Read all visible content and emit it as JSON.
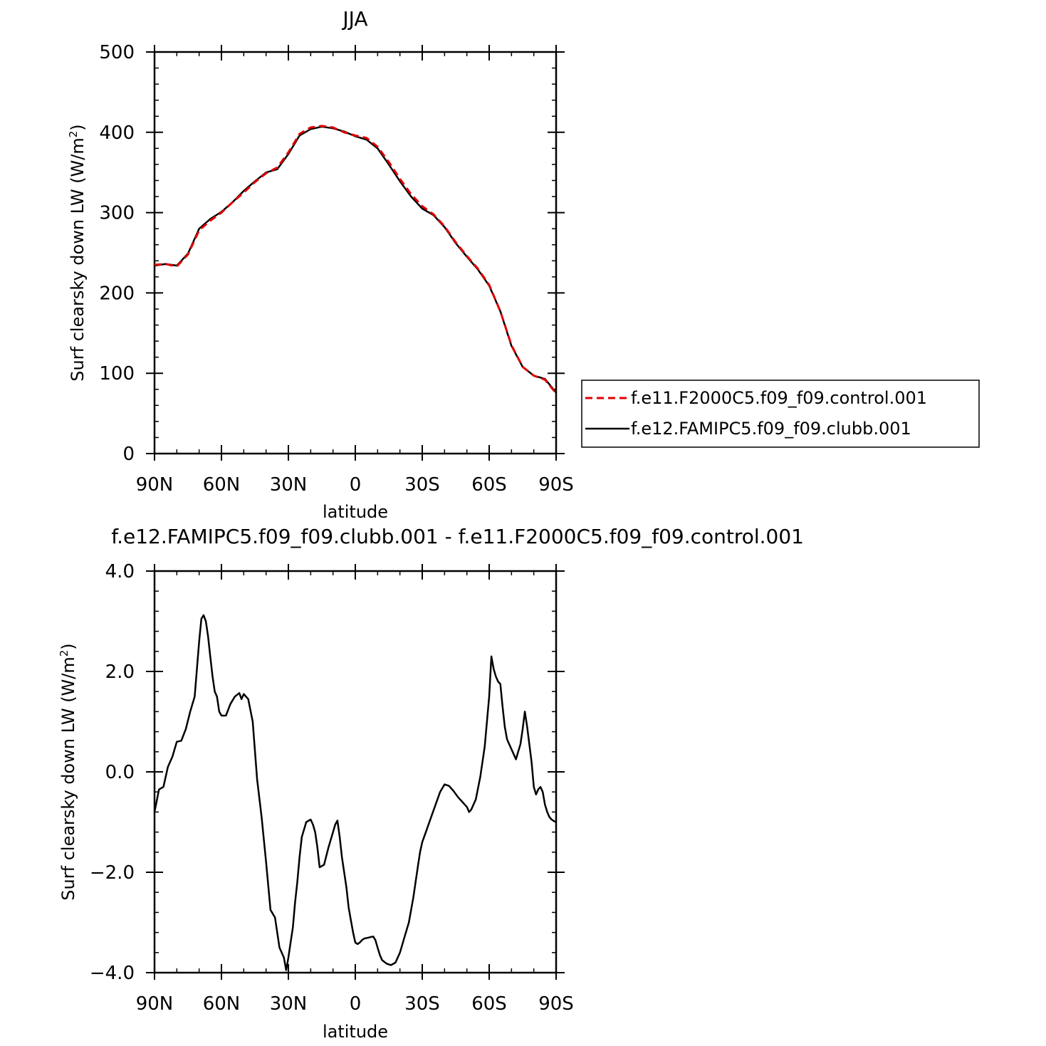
{
  "chart_data": [
    {
      "type": "line",
      "title": "JJA",
      "xlabel": "latitude",
      "ylabel": "Surf clearsky down LW (W/m²)",
      "ylabel_main": "Surf clearsky down LW (W/m",
      "ylabel_sup": "2",
      "ylabel_end": ")",
      "xlim": [
        90,
        -90
      ],
      "ylim": [
        0,
        500
      ],
      "xticks": [
        90,
        60,
        30,
        0,
        -30,
        -60,
        -90
      ],
      "xtick_labels": [
        "90N",
        "60N",
        "30N",
        "0",
        "30S",
        "60S",
        "90S"
      ],
      "yticks": [
        0,
        100,
        200,
        300,
        400,
        500
      ],
      "ytick_labels": [
        "0",
        "100",
        "200",
        "300",
        "400",
        "500"
      ],
      "legend_position": "right",
      "series": [
        {
          "name": "f.e11.F2000C5.f09_f09.control.001",
          "color": "#e00000",
          "dash": "dashed",
          "x": [
            90,
            85,
            80,
            75,
            70,
            65,
            60,
            55,
            50,
            45,
            40,
            35,
            30,
            25,
            20,
            15,
            10,
            5,
            0,
            -5,
            -10,
            -15,
            -20,
            -25,
            -30,
            -35,
            -40,
            -45,
            -50,
            -55,
            -60,
            -65,
            -70,
            -75,
            -80,
            -85,
            -90
          ],
          "values": [
            235,
            236,
            233,
            248,
            278,
            290,
            300,
            313,
            325,
            338,
            349,
            356,
            375,
            398,
            406,
            408,
            406,
            400,
            396,
            393,
            382,
            363,
            342,
            323,
            308,
            298,
            283,
            263,
            246,
            230,
            210,
            177,
            135,
            108,
            97,
            92,
            75
          ]
        },
        {
          "name": "f.e12.FAMIPC5.f09_f09.clubb.001",
          "color": "#000000",
          "dash": "solid",
          "x": [
            90,
            85,
            80,
            75,
            70,
            65,
            60,
            55,
            50,
            45,
            40,
            35,
            30,
            25,
            20,
            15,
            10,
            5,
            0,
            -5,
            -10,
            -15,
            -20,
            -25,
            -30,
            -35,
            -40,
            -45,
            -50,
            -55,
            -60,
            -65,
            -70,
            -75,
            -80,
            -85,
            -90
          ],
          "values": [
            234,
            236,
            234,
            249,
            280,
            292,
            301,
            313,
            327,
            339,
            350,
            354,
            373,
            396,
            404,
            407,
            405,
            401,
            395,
            391,
            380,
            360,
            339,
            320,
            305,
            297,
            282,
            262,
            245,
            229,
            209,
            177,
            134,
            108,
            97,
            93,
            76
          ]
        }
      ]
    },
    {
      "type": "line",
      "title": "f.e12.FAMIPC5.f09_f09.clubb.001 - f.e11.F2000C5.f09_f09.control.001",
      "xlabel": "latitude",
      "ylabel": "Surf clearsky down LW (W/m²)",
      "ylabel_main": "Surf clearsky down LW (W/m",
      "ylabel_sup": "2",
      "ylabel_end": ")",
      "xlim": [
        90,
        -90
      ],
      "ylim": [
        -4.0,
        4.0
      ],
      "xticks": [
        90,
        60,
        30,
        0,
        -30,
        -60,
        -90
      ],
      "xtick_labels": [
        "90N",
        "60N",
        "30N",
        "0",
        "30S",
        "60S",
        "90S"
      ],
      "yticks": [
        -4.0,
        -2.0,
        0.0,
        2.0,
        4.0
      ],
      "ytick_labels": [
        "−4.0",
        "−2.0",
        "0.0",
        "2.0",
        "4.0"
      ],
      "series": [
        {
          "color": "#000000",
          "x": [
            90,
            88,
            86,
            84,
            82,
            80,
            78,
            76,
            74,
            72,
            70,
            69,
            68,
            67,
            66,
            65,
            64,
            63,
            62,
            61,
            60,
            58,
            56,
            54,
            52,
            51,
            50,
            49,
            48,
            46,
            44,
            42,
            40,
            38,
            36,
            34,
            32,
            31,
            30,
            29,
            28,
            27,
            26,
            25,
            24,
            22,
            20,
            19,
            18,
            17,
            16,
            14,
            12,
            10,
            9,
            8,
            7,
            6,
            4,
            3,
            2,
            1,
            0,
            -1,
            -2,
            -3,
            -4,
            -6,
            -8,
            -9,
            -10,
            -11,
            -12,
            -14,
            -16,
            -18,
            -20,
            -22,
            -24,
            -26,
            -27,
            -28,
            -29,
            -30,
            -32,
            -34,
            -36,
            -38,
            -40,
            -42,
            -44,
            -46,
            -48,
            -50,
            -51,
            -52,
            -54,
            -56,
            -58,
            -60,
            -61,
            -62,
            -63,
            -64,
            -65,
            -66,
            -67,
            -68,
            -69,
            -70,
            -71,
            -72,
            -73,
            -74,
            -75,
            -76,
            -77,
            -78,
            -79,
            -80,
            -81,
            -82,
            -83,
            -84,
            -85,
            -86,
            -87,
            -88,
            -89,
            -90
          ],
          "values": [
            -0.8,
            -0.35,
            -0.3,
            0.1,
            0.3,
            0.6,
            0.62,
            0.85,
            1.2,
            1.5,
            2.6,
            3.05,
            3.12,
            3.0,
            2.7,
            2.3,
            1.9,
            1.6,
            1.5,
            1.2,
            1.12,
            1.12,
            1.35,
            1.5,
            1.57,
            1.45,
            1.55,
            1.5,
            1.45,
            1.0,
            -0.15,
            -0.9,
            -1.8,
            -2.75,
            -2.9,
            -3.5,
            -3.7,
            -3.95,
            -3.7,
            -3.4,
            -3.1,
            -2.6,
            -2.2,
            -1.7,
            -1.3,
            -1.0,
            -0.95,
            -1.05,
            -1.2,
            -1.5,
            -1.9,
            -1.85,
            -1.5,
            -1.2,
            -1.05,
            -0.97,
            -1.3,
            -1.7,
            -2.3,
            -2.7,
            -2.95,
            -3.2,
            -3.4,
            -3.43,
            -3.4,
            -3.35,
            -3.32,
            -3.3,
            -3.28,
            -3.35,
            -3.5,
            -3.65,
            -3.75,
            -3.82,
            -3.85,
            -3.8,
            -3.6,
            -3.3,
            -3.0,
            -2.5,
            -2.2,
            -1.9,
            -1.6,
            -1.4,
            -1.15,
            -0.9,
            -0.65,
            -0.4,
            -0.25,
            -0.28,
            -0.38,
            -0.5,
            -0.6,
            -0.7,
            -0.8,
            -0.75,
            -0.55,
            -0.1,
            0.5,
            1.5,
            2.3,
            2.05,
            1.9,
            1.8,
            1.75,
            1.3,
            0.9,
            0.65,
            0.55,
            0.45,
            0.35,
            0.25,
            0.4,
            0.55,
            0.85,
            1.2,
            0.9,
            0.55,
            0.2,
            -0.3,
            -0.45,
            -0.35,
            -0.3,
            -0.4,
            -0.65,
            -0.8,
            -0.9,
            -0.95,
            -0.98,
            -1.0
          ]
        }
      ]
    }
  ]
}
